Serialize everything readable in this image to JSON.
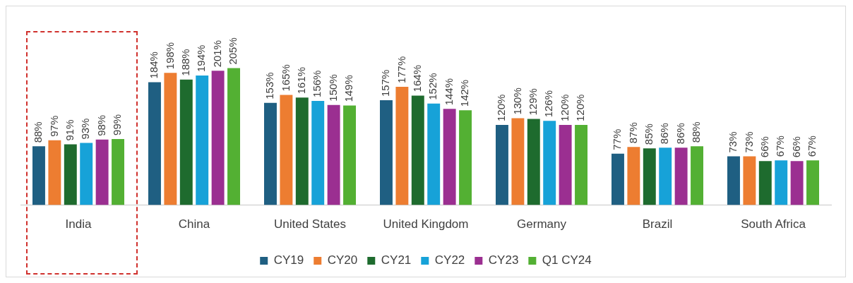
{
  "chart_data": {
    "type": "bar",
    "categories": [
      "India",
      "China",
      "United States",
      "United Kingdom",
      "Germany",
      "Brazil",
      "South Africa"
    ],
    "series": [
      {
        "name": "CY19",
        "color": "#1f5f82",
        "values": [
          88,
          184,
          153,
          157,
          120,
          77,
          73
        ],
        "value_labels": [
          "88%",
          "184%",
          "153%",
          "157%",
          "120%",
          "77%",
          "73%"
        ]
      },
      {
        "name": "CY20",
        "color": "#ed7d31",
        "values": [
          97,
          198,
          165,
          177,
          130,
          87,
          73
        ],
        "value_labels": [
          "97%",
          "198%",
          "165%",
          "177%",
          "130%",
          "87%",
          "73%"
        ]
      },
      {
        "name": "CY21",
        "color": "#1e6b2e",
        "values": [
          91,
          188,
          161,
          164,
          129,
          85,
          66
        ],
        "value_labels": [
          "91%",
          "188%",
          "161%",
          "164%",
          "129%",
          "85%",
          "66%"
        ]
      },
      {
        "name": "CY22",
        "color": "#17a2d8",
        "values": [
          93,
          194,
          156,
          152,
          126,
          86,
          67
        ],
        "value_labels": [
          "93%",
          "194%",
          "156%",
          "152%",
          "126%",
          "86%",
          "67%"
        ]
      },
      {
        "name": "CY23",
        "color": "#9b2f91",
        "values": [
          98,
          201,
          150,
          144,
          120,
          86,
          66
        ],
        "value_labels": [
          "98%",
          "201%",
          "150%",
          "144%",
          "120%",
          "86%",
          "66%"
        ]
      },
      {
        "name": "Q1 CY24",
        "color": "#53b033",
        "values": [
          99,
          205,
          149,
          142,
          120,
          88,
          67
        ],
        "value_labels": [
          "99%",
          "205%",
          "149%",
          "142%",
          "120%",
          "88%",
          "67%"
        ]
      }
    ],
    "grid": false,
    "legend": "bottom",
    "tick_labels": "x"
  }
}
